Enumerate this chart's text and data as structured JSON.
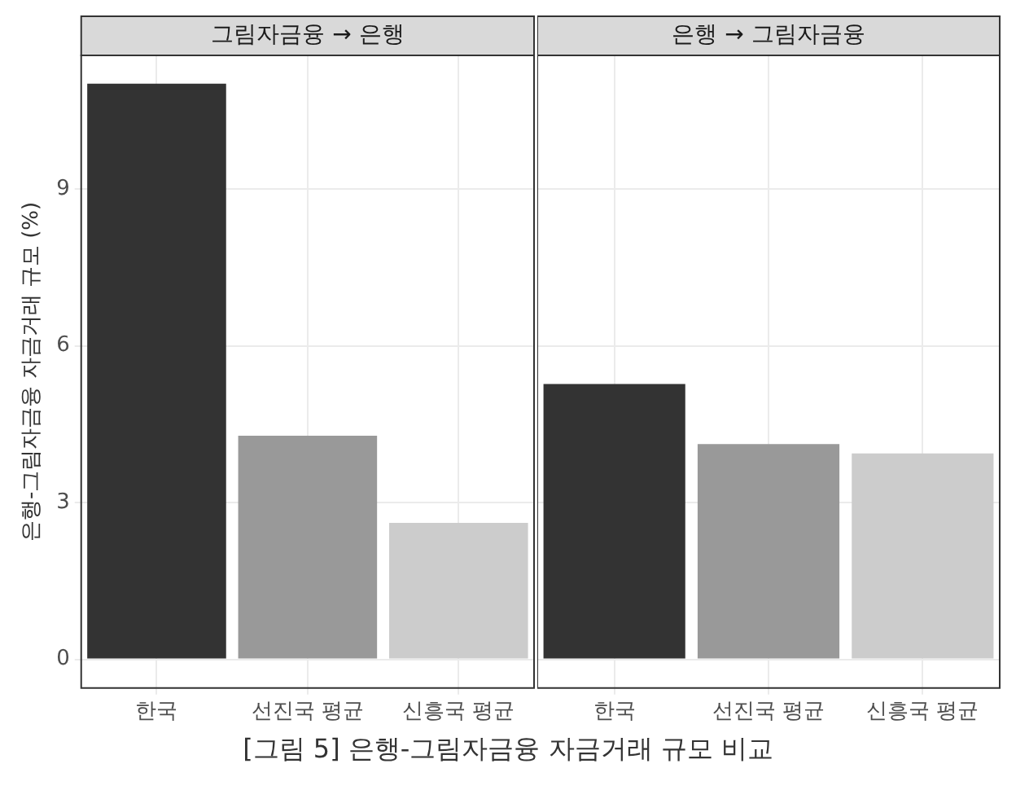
{
  "chart_data": [
    {
      "type": "bar",
      "title": "그림자금융 → 은행",
      "ylabel": "은행-그림자금융 자금거래 규모 (%)",
      "categories": [
        "한국",
        "선진국 평균",
        "신흥국 평균"
      ],
      "values": [
        11.02,
        4.28,
        2.61
      ],
      "colors": [
        "#333333",
        "#999999",
        "#cccccc"
      ],
      "ylim": [
        -0.55,
        11.56
      ],
      "yticks": [
        0,
        3,
        6,
        9
      ],
      "grid": true,
      "annotations": [
        "[그림 5] 은행-그림자금융 자금거래 규모 비교"
      ]
    },
    {
      "type": "bar",
      "title": "은행 → 그림자금융",
      "categories": [
        "한국",
        "선진국 평균",
        "신흥국 평균"
      ],
      "values": [
        5.27,
        4.12,
        3.94
      ],
      "colors": [
        "#333333",
        "#999999",
        "#cccccc"
      ],
      "ylim": [
        -0.55,
        11.56
      ],
      "yticks": [
        0,
        3,
        6,
        9
      ],
      "grid": true,
      "tick_labels": "x"
    }
  ]
}
